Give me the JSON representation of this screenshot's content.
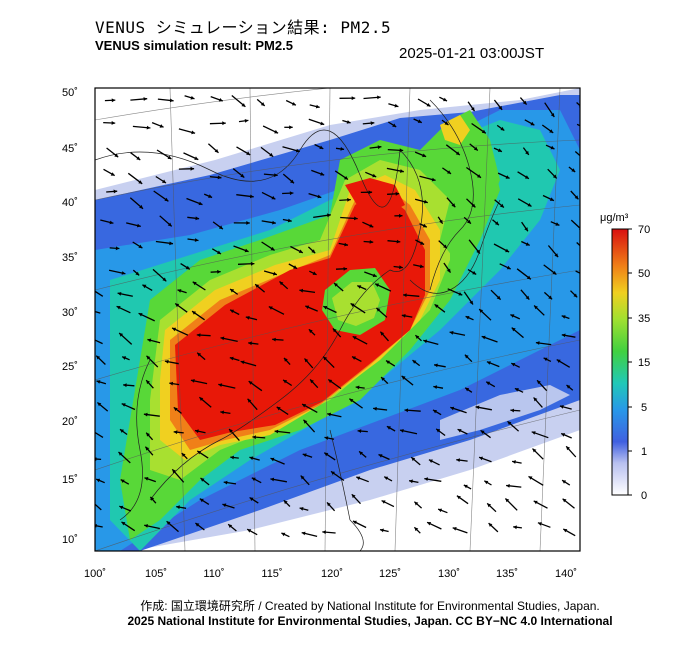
{
  "header": {
    "title_jp": "VENUS シミュレーション結果: PM2.5",
    "title_en": "VENUS simulation result: PM2.5",
    "timestamp": "2025-01-21 03:00JST"
  },
  "map": {
    "lon_ticks": [
      "100˚",
      "105˚",
      "110˚",
      "115˚",
      "120˚",
      "125˚",
      "130˚",
      "135˚",
      "140˚"
    ],
    "lat_ticks": [
      "50˚",
      "45˚",
      "40˚",
      "35˚",
      "30˚",
      "25˚",
      "20˚",
      "15˚",
      "10˚"
    ],
    "lon_range": [
      100,
      142
    ],
    "lat_range": [
      9,
      51
    ]
  },
  "colorbar": {
    "unit": "μg/m³",
    "labels": [
      "70",
      "50",
      "35",
      "15",
      "5",
      "1",
      "0"
    ]
  },
  "colors": {
    "very_high": "#e81808",
    "high": "#f07018",
    "mid_high": "#e8d020",
    "mid": "#58d838",
    "low_mid": "#20c8b0",
    "low": "#2890e8",
    "very_low": "#3860e0",
    "minimal": "#c8d0f0"
  },
  "footer": {
    "credit_line": "作成: 国立環境研究所 / Created by National Institute for Environmental Studies, Japan.",
    "copyright_line": "2025 National Institute for Environmental Studies, Japan. CC BY−NC 4.0 International"
  }
}
